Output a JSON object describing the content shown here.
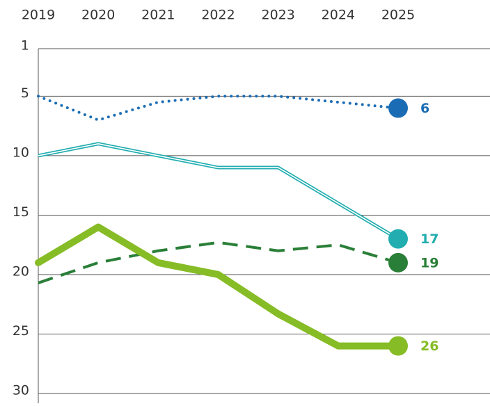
{
  "chart_data": {
    "type": "line",
    "categories": [
      2019,
      2020,
      2021,
      2022,
      2023,
      2024,
      2025
    ],
    "ylim": [
      1,
      30
    ],
    "yticks": [
      1,
      5,
      10,
      15,
      20,
      25,
      30
    ],
    "y_inverted": true,
    "grid": true,
    "series": [
      {
        "color": "#1a6db5",
        "style": "dotted",
        "values": [
          5,
          7,
          5.5,
          5,
          5,
          5.5,
          6
        ]
      },
      {
        "color": "#22adb0",
        "style": "double",
        "values": [
          10,
          9,
          10,
          11,
          11,
          14,
          17
        ]
      },
      {
        "color": "#2a7f38",
        "style": "dashed",
        "values": [
          20.7,
          19,
          18,
          17.3,
          18,
          17.5,
          19
        ]
      },
      {
        "color": "#86bc25",
        "style": "thick",
        "values": [
          19,
          16,
          19,
          20,
          23.3,
          26,
          26
        ]
      }
    ]
  }
}
